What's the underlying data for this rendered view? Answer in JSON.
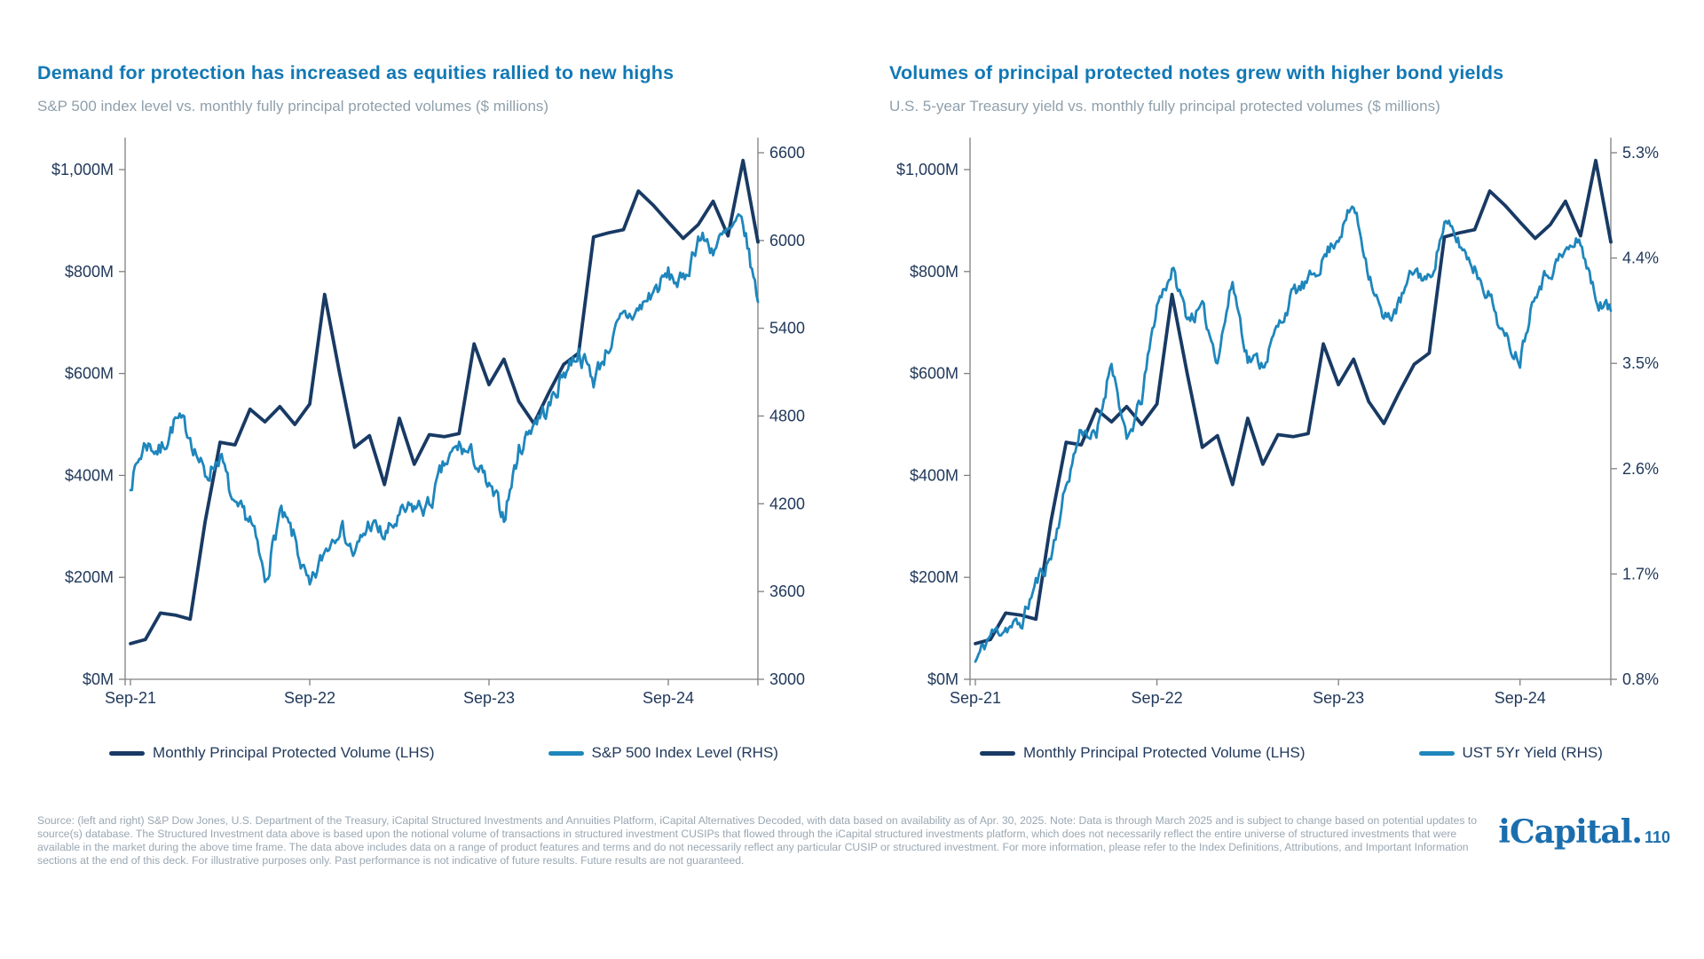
{
  "colors": {
    "title_blue": "#1278B4",
    "subtitle_gray": "#8FA0AC",
    "navy": "#183A64",
    "blue": "#1E86BC",
    "axis_label": "#21395B",
    "axis_line": "#808080",
    "footer_gray": "#9AA7B2",
    "logo_blue": "#1B6EAE"
  },
  "chart_data": [
    {
      "type": "line",
      "title": "Demand for protection has increased as equities rallied to new highs",
      "subtitle": "S&P 500 index level vs. monthly fully principal protected volumes ($ millions)",
      "legend_position": "bottom",
      "grid": false,
      "x": [
        "Sep-21",
        "Oct-21",
        "Nov-21",
        "Dec-21",
        "Jan-22",
        "Feb-22",
        "Mar-22",
        "Apr-22",
        "May-22",
        "Jun-22",
        "Jul-22",
        "Aug-22",
        "Sep-22",
        "Oct-22",
        "Nov-22",
        "Dec-22",
        "Jan-23",
        "Feb-23",
        "Mar-23",
        "Apr-23",
        "May-23",
        "Jun-23",
        "Jul-23",
        "Aug-23",
        "Sep-23",
        "Oct-23",
        "Nov-23",
        "Dec-23",
        "Jan-24",
        "Feb-24",
        "Mar-24",
        "Apr-24",
        "May-24",
        "Jun-24",
        "Jul-24",
        "Aug-24",
        "Sep-24",
        "Oct-24",
        "Nov-24",
        "Dec-24",
        "Jan-25",
        "Feb-25",
        "Mar-25"
      ],
      "x_ticks": [
        {
          "label": "Sep-21",
          "month_index": 0
        },
        {
          "label": "Sep-22",
          "month_index": 12
        },
        {
          "label": "Sep-23",
          "month_index": 24
        },
        {
          "label": "Sep-24",
          "month_index": 36
        }
      ],
      "left_axis": {
        "min": 0,
        "max": 1000,
        "ticks": [
          {
            "value": 0,
            "label": "$0M"
          },
          {
            "value": 200,
            "label": "$200M"
          },
          {
            "value": 400,
            "label": "$400M"
          },
          {
            "value": 600,
            "label": "$600M"
          },
          {
            "value": 800,
            "label": "$800M"
          },
          {
            "value": 1000,
            "label": "$1,000M"
          }
        ]
      },
      "right_axis": {
        "min": 3000,
        "max": 6600,
        "ticks": [
          {
            "value": 3000,
            "label": "3000"
          },
          {
            "value": 3600,
            "label": "3600"
          },
          {
            "value": 4200,
            "label": "4200"
          },
          {
            "value": 4800,
            "label": "4800"
          },
          {
            "value": 5400,
            "label": "5400"
          },
          {
            "value": 6000,
            "label": "6000"
          },
          {
            "value": 6600,
            "label": "6600"
          }
        ]
      },
      "series": [
        {
          "name": "Monthly Principal Protected Volume (LHS)",
          "axis": "left",
          "color_key": "navy",
          "render": "monthly",
          "line_width": 3.8,
          "values": [
            70,
            78,
            130,
            126,
            118,
            310,
            465,
            460,
            530,
            505,
            535,
            500,
            540,
            755,
            600,
            455,
            478,
            382,
            512,
            422,
            480,
            476,
            482,
            658,
            578,
            628,
            545,
            502,
            562,
            618,
            640,
            868,
            876,
            882,
            958,
            930,
            897,
            865,
            892,
            938,
            870,
            1018,
            858
          ]
        },
        {
          "name": "S&P 500 Index Level (RHS)",
          "axis": "right",
          "color_key": "blue",
          "render": "daily",
          "line_width": 2.8,
          "noise": {
            "amplitude": 130,
            "seed": 7
          },
          "values": [
            4350,
            4620,
            4560,
            4770,
            4680,
            4380,
            4540,
            4130,
            4100,
            3670,
            4130,
            3950,
            3590,
            3870,
            4080,
            3840,
            4070,
            3970,
            4100,
            4170,
            4180,
            4450,
            4590,
            4510,
            4290,
            4120,
            4560,
            4770,
            4850,
            5100,
            5250,
            5050,
            5280,
            5460,
            5520,
            5650,
            5760,
            5700,
            6030,
            5950,
            6040,
            6120,
            5580
          ]
        }
      ]
    },
    {
      "type": "line",
      "title": "Volumes of principal protected notes grew with higher bond yields",
      "subtitle": "U.S. 5-year Treasury yield vs. monthly fully principal protected volumes ($ millions)",
      "legend_position": "bottom",
      "grid": false,
      "x": [
        "Sep-21",
        "Oct-21",
        "Nov-21",
        "Dec-21",
        "Jan-22",
        "Feb-22",
        "Mar-22",
        "Apr-22",
        "May-22",
        "Jun-22",
        "Jul-22",
        "Aug-22",
        "Sep-22",
        "Oct-22",
        "Nov-22",
        "Dec-22",
        "Jan-23",
        "Feb-23",
        "Mar-23",
        "Apr-23",
        "May-23",
        "Jun-23",
        "Jul-23",
        "Aug-23",
        "Sep-23",
        "Oct-23",
        "Nov-23",
        "Dec-23",
        "Jan-24",
        "Feb-24",
        "Mar-24",
        "Apr-24",
        "May-24",
        "Jun-24",
        "Jul-24",
        "Aug-24",
        "Sep-24",
        "Oct-24",
        "Nov-24",
        "Dec-24",
        "Jan-25",
        "Feb-25",
        "Mar-25"
      ],
      "x_ticks": [
        {
          "label": "Sep-21",
          "month_index": 0
        },
        {
          "label": "Sep-22",
          "month_index": 12
        },
        {
          "label": "Sep-23",
          "month_index": 24
        },
        {
          "label": "Sep-24",
          "month_index": 36
        }
      ],
      "left_axis": {
        "min": 0,
        "max": 1000,
        "ticks": [
          {
            "value": 0,
            "label": "$0M"
          },
          {
            "value": 200,
            "label": "$200M"
          },
          {
            "value": 400,
            "label": "$400M"
          },
          {
            "value": 600,
            "label": "$600M"
          },
          {
            "value": 800,
            "label": "$800M"
          },
          {
            "value": 1000,
            "label": "$1,000M"
          }
        ]
      },
      "right_axis": {
        "min": 0.8,
        "max": 5.3,
        "ticks": [
          {
            "value": 0.8,
            "label": "0.8%"
          },
          {
            "value": 1.7,
            "label": "1.7%"
          },
          {
            "value": 2.6,
            "label": "2.6%"
          },
          {
            "value": 3.5,
            "label": "3.5%"
          },
          {
            "value": 4.4,
            "label": "4.4%"
          },
          {
            "value": 5.3,
            "label": "5.3%"
          }
        ]
      },
      "series": [
        {
          "name": "Monthly Principal Protected Volume (LHS)",
          "axis": "left",
          "color_key": "navy",
          "render": "monthly",
          "line_width": 3.8,
          "values": [
            70,
            78,
            130,
            126,
            118,
            310,
            465,
            460,
            530,
            505,
            535,
            500,
            540,
            755,
            600,
            455,
            478,
            382,
            512,
            422,
            480,
            476,
            482,
            658,
            578,
            628,
            545,
            502,
            562,
            618,
            640,
            868,
            876,
            882,
            958,
            930,
            897,
            865,
            892,
            938,
            870,
            1018,
            858
          ]
        },
        {
          "name": "UST 5Yr Yield (RHS)",
          "axis": "right",
          "color_key": "blue",
          "render": "daily",
          "line_width": 2.8,
          "noise": {
            "amplitude": 0.13,
            "seed": 11
          },
          "values": [
            0.95,
            1.18,
            1.25,
            1.26,
            1.62,
            1.85,
            2.45,
            2.95,
            2.85,
            3.55,
            2.8,
            3.2,
            4.0,
            4.3,
            3.9,
            3.95,
            3.55,
            4.2,
            3.55,
            3.5,
            3.8,
            4.1,
            4.18,
            4.4,
            4.6,
            4.85,
            4.3,
            3.85,
            4.0,
            4.3,
            4.2,
            4.7,
            4.52,
            4.32,
            4.08,
            3.7,
            3.55,
            4.15,
            4.3,
            4.45,
            4.55,
            4.05,
            3.95
          ]
        }
      ]
    }
  ],
  "footer": {
    "source_text": "Source: (left and right) S&P Dow Jones, U.S. Department of the Treasury, iCapital Structured Investments and Annuities Platform, iCapital Alternatives Decoded, with data based on availability as of Apr. 30, 2025. Note: Data is through March 2025 and is subject to change based on potential updates to source(s) database. The Structured Investment data above is based upon the notional volume of transactions in structured investment CUSIPs that flowed through the iCapital structured investments platform, which does not necessarily reflect the entire universe of structured investments that were available in the market during the above time frame. The data above includes data on a range of product features and terms and do not necessarily reflect any particular CUSIP or structured investment. For more information, please refer to the Index Definitions, Attributions, and Important Information sections at the end of this deck. For illustrative purposes only. Past performance is not indicative of future results. Future results are not guaranteed."
  },
  "logo": {
    "brand": "iCapital",
    "separator": ".",
    "page_number": "110"
  }
}
